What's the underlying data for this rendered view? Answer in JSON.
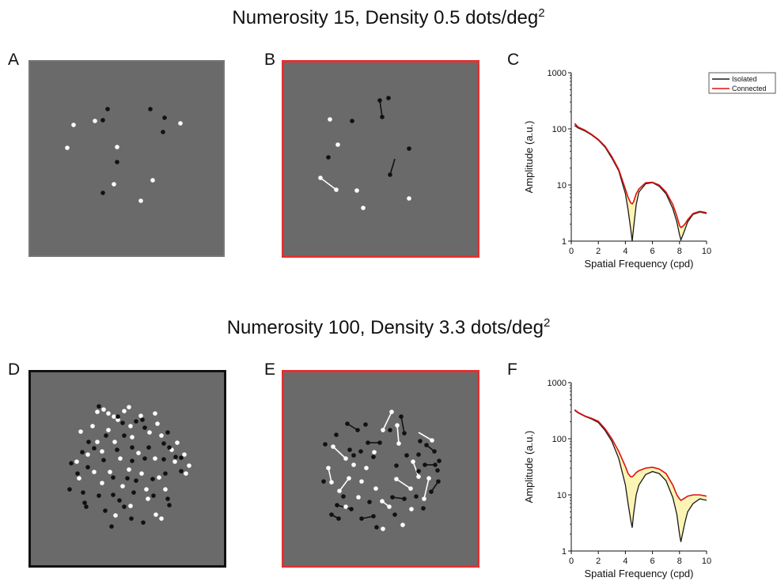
{
  "sections": [
    {
      "heading_prefix": "Numerosity 15, Density 0.5 dots/deg",
      "heading_sup": "2"
    },
    {
      "heading_prefix": "Numerosity 100, Density 3.3 dots/deg",
      "heading_sup": "2"
    }
  ],
  "panel_letters": {
    "a": "A",
    "b": "B",
    "c": "C",
    "d": "D",
    "e": "E",
    "f": "F"
  },
  "colors": {
    "background": "#6a6a6a",
    "isolated_frame": "#777777",
    "connected_frame": "#e53030",
    "dense_isolated_frame": "#111111",
    "dot_black": "#111111",
    "dot_white": "#ffffff",
    "isolated_line": "#1a1a1a",
    "connected_line": "#e01010",
    "fill": "#fbf4b4"
  },
  "stimuli": {
    "A": {
      "white": [
        [
          55,
          80
        ],
        [
          82,
          75
        ],
        [
          110,
          108
        ],
        [
          47,
          109
        ],
        [
          190,
          78
        ],
        [
          106,
          155
        ],
        [
          155,
          150
        ],
        [
          140,
          176
        ]
      ],
      "black": [
        [
          98,
          60
        ],
        [
          92,
          74
        ],
        [
          152,
          60
        ],
        [
          170,
          71
        ],
        [
          168,
          89
        ],
        [
          110,
          127
        ],
        [
          92,
          166
        ]
      ]
    },
    "B": {
      "white": [
        [
          58,
          72
        ],
        [
          68,
          104
        ],
        [
          46,
          146
        ],
        [
          66,
          161
        ],
        [
          92,
          162
        ],
        [
          100,
          184
        ],
        [
          158,
          172
        ]
      ],
      "black": [
        [
          86,
          74
        ],
        [
          121,
          48
        ],
        [
          124,
          69
        ],
        [
          132,
          45
        ],
        [
          56,
          120
        ],
        [
          158,
          109
        ],
        [
          134,
          142
        ]
      ],
      "white_links": [
        [
          [
            46,
            146
          ],
          [
            66,
            161
          ]
        ]
      ],
      "black_links": [
        [
          [
            121,
            48
          ],
          [
            124,
            69
          ]
        ],
        [
          [
            134,
            142
          ],
          [
            140,
            122
          ]
        ]
      ]
    },
    "D": {
      "white": [
        [
          84,
          50
        ],
        [
          92,
          47
        ],
        [
          98,
          52
        ],
        [
          118,
          49
        ],
        [
          124,
          44
        ],
        [
          105,
          56
        ],
        [
          139,
          55
        ],
        [
          110,
          60
        ],
        [
          78,
          68
        ],
        [
          98,
          73
        ],
        [
          126,
          68
        ],
        [
          157,
          52
        ],
        [
          160,
          65
        ],
        [
          63,
          75
        ],
        [
          84,
          88
        ],
        [
          106,
          88
        ],
        [
          128,
          82
        ],
        [
          150,
          76
        ],
        [
          165,
          80
        ],
        [
          185,
          89
        ],
        [
          72,
          104
        ],
        [
          90,
          100
        ],
        [
          113,
          109
        ],
        [
          136,
          102
        ],
        [
          157,
          109
        ],
        [
          178,
          98
        ],
        [
          194,
          104
        ],
        [
          58,
          113
        ],
        [
          80,
          126
        ],
        [
          100,
          126
        ],
        [
          124,
          123
        ],
        [
          140,
          128
        ],
        [
          162,
          133
        ],
        [
          182,
          113
        ],
        [
          196,
          128
        ],
        [
          61,
          134
        ],
        [
          90,
          140
        ],
        [
          116,
          144
        ],
        [
          146,
          148
        ],
        [
          170,
          148
        ],
        [
          107,
          181
        ],
        [
          126,
          169
        ],
        [
          148,
          160
        ],
        [
          158,
          180
        ],
        [
          165,
          185
        ],
        [
          200,
          118
        ]
      ],
      "black": [
        [
          86,
          43
        ],
        [
          110,
          56
        ],
        [
          116,
          64
        ],
        [
          133,
          62
        ],
        [
          141,
          60
        ],
        [
          95,
          80
        ],
        [
          80,
          96
        ],
        [
          118,
          80
        ],
        [
          144,
          70
        ],
        [
          173,
          76
        ],
        [
          168,
          90
        ],
        [
          73,
          88
        ],
        [
          109,
          98
        ],
        [
          128,
          95
        ],
        [
          149,
          95
        ],
        [
          175,
          95
        ],
        [
          183,
          107
        ],
        [
          65,
          101
        ],
        [
          51,
          115
        ],
        [
          92,
          111
        ],
        [
          128,
          112
        ],
        [
          144,
          109
        ],
        [
          168,
          110
        ],
        [
          190,
          108
        ],
        [
          59,
          128
        ],
        [
          72,
          120
        ],
        [
          104,
          133
        ],
        [
          122,
          134
        ],
        [
          133,
          137
        ],
        [
          154,
          135
        ],
        [
          170,
          128
        ],
        [
          190,
          125
        ],
        [
          49,
          148
        ],
        [
          66,
          152
        ],
        [
          86,
          156
        ],
        [
          104,
          155
        ],
        [
          130,
          152
        ],
        [
          155,
          156
        ],
        [
          175,
          168
        ],
        [
          68,
          165
        ],
        [
          112,
          162
        ],
        [
          70,
          170
        ],
        [
          127,
          185
        ],
        [
          94,
          175
        ],
        [
          118,
          170
        ],
        [
          102,
          195
        ],
        [
          142,
          190
        ],
        [
          173,
          160
        ]
      ]
    },
    "E": {
      "white": [
        [
          62,
          94
        ],
        [
          78,
          109
        ],
        [
          56,
          121
        ],
        [
          60,
          139
        ],
        [
          70,
          150
        ],
        [
          82,
          134
        ],
        [
          88,
          117
        ],
        [
          104,
          121
        ],
        [
          98,
          138
        ],
        [
          114,
          101
        ],
        [
          125,
          73
        ],
        [
          136,
          50
        ],
        [
          143,
          67
        ],
        [
          145,
          90
        ],
        [
          163,
          113
        ],
        [
          170,
          132
        ],
        [
          160,
          147
        ],
        [
          183,
          134
        ],
        [
          187,
          86
        ],
        [
          142,
          135
        ],
        [
          94,
          158
        ],
        [
          116,
          147
        ],
        [
          124,
          163
        ],
        [
          133,
          170
        ],
        [
          125,
          198
        ],
        [
          150,
          193
        ],
        [
          161,
          173
        ],
        [
          177,
          160
        ],
        [
          78,
          170
        ]
      ],
      "black": [
        [
          52,
          91
        ],
        [
          66,
          79
        ],
        [
          80,
          65
        ],
        [
          83,
          98
        ],
        [
          93,
          73
        ],
        [
          103,
          66
        ],
        [
          121,
          89
        ],
        [
          106,
          89
        ],
        [
          134,
          73
        ],
        [
          148,
          56
        ],
        [
          152,
          77
        ],
        [
          172,
          87
        ],
        [
          180,
          92
        ],
        [
          170,
          104
        ],
        [
          190,
          100
        ],
        [
          196,
          112
        ],
        [
          191,
          117
        ],
        [
          178,
          117
        ],
        [
          194,
          124
        ],
        [
          195,
          138
        ],
        [
          186,
          151
        ],
        [
          167,
          157
        ],
        [
          152,
          160
        ],
        [
          137,
          158
        ],
        [
          170,
          125
        ],
        [
          155,
          105
        ],
        [
          113,
          107
        ],
        [
          97,
          100
        ],
        [
          88,
          105
        ],
        [
          67,
          168
        ],
        [
          85,
          173
        ],
        [
          98,
          185
        ],
        [
          113,
          182
        ],
        [
          117,
          196
        ],
        [
          108,
          164
        ],
        [
          50,
          138
        ],
        [
          75,
          157
        ],
        [
          142,
          118
        ],
        [
          140,
          180
        ],
        [
          176,
          172
        ],
        [
          60,
          180
        ],
        [
          69,
          185
        ]
      ],
      "white_links": [
        [
          [
            62,
            94
          ],
          [
            78,
            109
          ]
        ],
        [
          [
            56,
            121
          ],
          [
            60,
            139
          ]
        ],
        [
          [
            70,
            150
          ],
          [
            82,
            134
          ]
        ],
        [
          [
            125,
            73
          ],
          [
            136,
            50
          ]
        ],
        [
          [
            143,
            67
          ],
          [
            145,
            90
          ]
        ],
        [
          [
            163,
            113
          ],
          [
            170,
            132
          ]
        ],
        [
          [
            142,
            135
          ],
          [
            160,
            147
          ]
        ],
        [
          [
            124,
            163
          ],
          [
            133,
            170
          ]
        ],
        [
          [
            177,
            160
          ],
          [
            183,
            134
          ]
        ],
        [
          [
            170,
            76
          ],
          [
            187,
            86
          ]
        ]
      ],
      "black_links": [
        [
          [
            80,
            65
          ],
          [
            93,
            73
          ]
        ],
        [
          [
            106,
            89
          ],
          [
            121,
            89
          ]
        ],
        [
          [
            148,
            56
          ],
          [
            152,
            77
          ]
        ],
        [
          [
            180,
            92
          ],
          [
            190,
            100
          ]
        ],
        [
          [
            178,
            117
          ],
          [
            191,
            117
          ]
        ],
        [
          [
            186,
            151
          ],
          [
            195,
            138
          ]
        ],
        [
          [
            67,
            168
          ],
          [
            85,
            173
          ]
        ],
        [
          [
            98,
            185
          ],
          [
            113,
            182
          ]
        ],
        [
          [
            60,
            180
          ],
          [
            69,
            185
          ]
        ],
        [
          [
            137,
            158
          ],
          [
            152,
            160
          ]
        ]
      ]
    }
  },
  "chart_data": [
    {
      "type": "line",
      "panel": "C",
      "xlabel": "Spatial Frequency (cpd)",
      "ylabel": "Amplitude (a.u.)",
      "xlim": [
        0,
        10
      ],
      "ylim": [
        1,
        1000
      ],
      "yscale": "log",
      "xticks": [
        0,
        2,
        4,
        6,
        8,
        10
      ],
      "yticks": [
        1,
        10,
        100,
        1000
      ],
      "legend_position": "top-right",
      "series": [
        {
          "name": "Isolated",
          "color": "#1a1a1a",
          "x": [
            0.25,
            0.5,
            1,
            1.5,
            2,
            2.5,
            3,
            3.5,
            4,
            4.2,
            4.4,
            4.5,
            4.6,
            4.8,
            5,
            5.5,
            6,
            6.5,
            7,
            7.5,
            7.8,
            8,
            8.1,
            8.2,
            8.4,
            8.6,
            9,
            9.5,
            10
          ],
          "y": [
            115,
            104,
            92,
            78,
            63,
            47,
            30,
            18,
            7,
            3.6,
            1.6,
            1.0,
            1.7,
            4.5,
            7.5,
            10.5,
            11.0,
            9.5,
            7,
            3.8,
            2.2,
            1.3,
            1.05,
            1.2,
            1.6,
            2.2,
            3.0,
            3.3,
            3.1
          ]
        },
        {
          "name": "Connected",
          "color": "#e01010",
          "x": [
            0.25,
            0.5,
            1,
            1.5,
            2,
            2.5,
            3,
            3.5,
            4,
            4.2,
            4.4,
            4.5,
            4.6,
            4.8,
            5,
            5.5,
            6,
            6.5,
            7,
            7.5,
            7.8,
            8,
            8.1,
            8.2,
            8.4,
            8.6,
            9,
            9.5,
            10
          ],
          "y": [
            125,
            108,
            95,
            80,
            65,
            49,
            32,
            19,
            8.5,
            6,
            4.8,
            4.6,
            5.0,
            7,
            8.5,
            11,
            11.2,
            10,
            7.5,
            4.5,
            2.8,
            1.9,
            1.75,
            1.8,
            2.0,
            2.4,
            3.1,
            3.4,
            3.2
          ]
        }
      ]
    },
    {
      "type": "line",
      "panel": "F",
      "xlabel": "Spatial Frequency (cpd)",
      "ylabel": "Amplitude (a.u.)",
      "xlim": [
        0,
        10
      ],
      "ylim": [
        1,
        1000
      ],
      "yscale": "log",
      "xticks": [
        0,
        2,
        4,
        6,
        8,
        10
      ],
      "yticks": [
        1,
        10,
        100,
        1000
      ],
      "series": [
        {
          "name": "Isolated",
          "color": "#1a1a1a",
          "x": [
            0.25,
            0.5,
            1,
            1.5,
            2,
            2.5,
            3,
            3.5,
            4,
            4.2,
            4.4,
            4.5,
            4.6,
            4.8,
            5,
            5.5,
            6,
            6.5,
            7,
            7.5,
            7.8,
            8,
            8.1,
            8.2,
            8.4,
            8.6,
            9,
            9.5,
            10
          ],
          "y": [
            320,
            290,
            250,
            225,
            195,
            140,
            90,
            45,
            15,
            7,
            3.5,
            2.6,
            4.5,
            10,
            15,
            23,
            26,
            24,
            18,
            9,
            4.5,
            2.0,
            1.45,
            1.9,
            3.2,
            5,
            7,
            8.5,
            8
          ]
        },
        {
          "name": "Connected",
          "color": "#e01010",
          "x": [
            0.25,
            0.5,
            1,
            1.5,
            2,
            2.5,
            3,
            3.5,
            4,
            4.2,
            4.4,
            4.5,
            4.6,
            4.8,
            5,
            5.5,
            6,
            6.5,
            7,
            7.5,
            7.8,
            8,
            8.1,
            8.2,
            8.4,
            8.6,
            9,
            9.5,
            10
          ],
          "y": [
            330,
            295,
            255,
            232,
            205,
            150,
            100,
            60,
            32,
            24,
            21,
            21,
            22,
            25,
            27,
            30,
            31,
            29,
            24,
            15,
            10,
            8.5,
            8,
            8.2,
            8.8,
            9.5,
            10,
            10,
            9.5
          ]
        }
      ]
    }
  ]
}
